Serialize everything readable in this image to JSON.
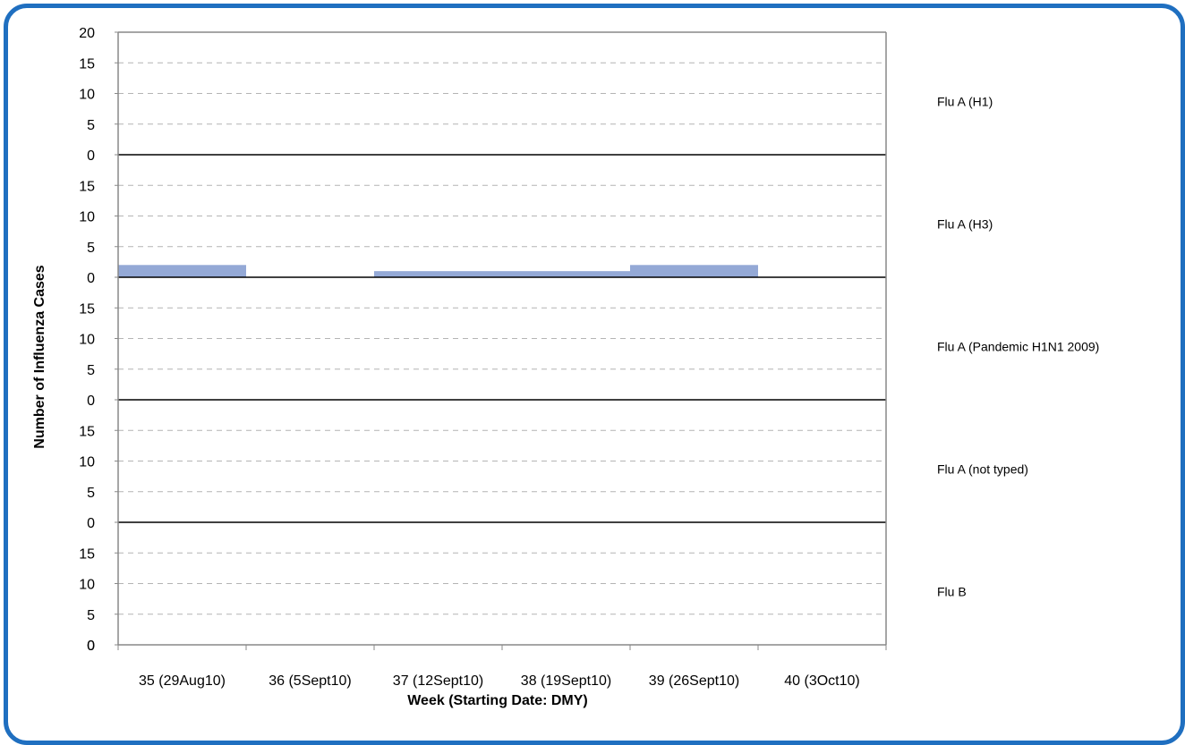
{
  "chart_data": {
    "type": "bar",
    "title": "",
    "xlabel": "Week (Starting Date: DMY)",
    "ylabel": "Number of Influenza Cases",
    "categories": [
      "35 (29Aug10)",
      "36 (5Sept10)",
      "37 (12Sept10)",
      "38 (19Sept10)",
      "39 (26Sept10)",
      "40 (3Oct10)"
    ],
    "ylim": [
      0,
      20
    ],
    "yticks": [
      "0",
      "5",
      "10",
      "15",
      "20"
    ],
    "panel_yticks": [
      "0",
      "5",
      "10",
      "15"
    ],
    "grid": true,
    "legend": "right",
    "series": [
      {
        "name": "Flu A (H1)",
        "values": [
          0,
          0,
          0,
          0,
          0,
          0
        ]
      },
      {
        "name": "Flu A (H3)",
        "values": [
          2,
          0,
          1,
          1,
          2,
          0
        ]
      },
      {
        "name": "Flu A (Pandemic H1N1 2009)",
        "values": [
          0,
          0,
          0,
          0,
          0,
          0
        ]
      },
      {
        "name": "Flu A (not typed)",
        "values": [
          0,
          0,
          0,
          0,
          0,
          0
        ]
      },
      {
        "name": "Flu B",
        "values": [
          0,
          0,
          0,
          0,
          0,
          0
        ]
      }
    ],
    "bar_color": "#94a9d6"
  }
}
